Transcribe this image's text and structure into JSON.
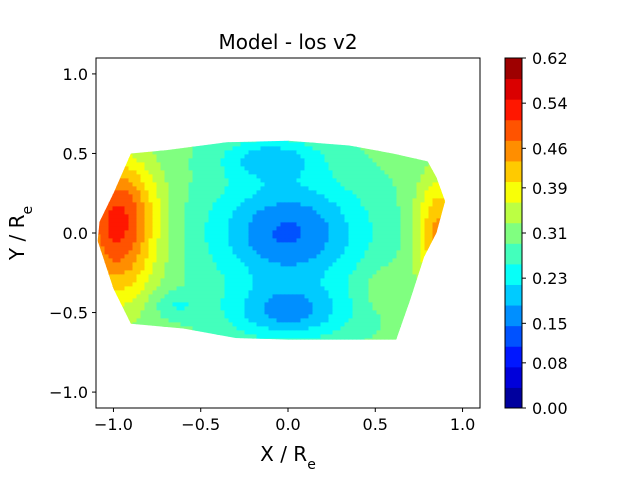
{
  "chart_data": {
    "type": "heatmap",
    "title": "Model - los v2",
    "xlabel": {
      "main": "X / R",
      "sub": "e"
    },
    "ylabel": {
      "main": "Y / R",
      "sub": "e"
    },
    "xlim": [
      -1.1,
      1.1
    ],
    "ylim": [
      -1.1,
      1.1
    ],
    "xticks": [
      -1.0,
      -0.5,
      0.0,
      0.5,
      1.0
    ],
    "xtick_labels": [
      "−1.0",
      "−0.5",
      "0.0",
      "0.5",
      "1.0"
    ],
    "yticks": [
      -1.0,
      -0.5,
      0.0,
      0.5,
      1.0
    ],
    "ytick_labels": [
      "−1.0",
      "−0.5",
      "0.0",
      "0.5",
      "1.0"
    ],
    "colorbar": {
      "min": 0.0,
      "max": 0.62,
      "levels": 17,
      "colormap": "jet",
      "ticks": [
        0.0,
        0.08,
        0.15,
        0.23,
        0.31,
        0.39,
        0.46,
        0.54,
        0.62
      ],
      "tick_labels": [
        "0.00",
        "0.08",
        "0.15",
        "0.23",
        "0.31",
        "0.39",
        "0.46",
        "0.54",
        "0.62"
      ]
    },
    "boundary": [
      [
        -1.08,
        0.07
      ],
      [
        -1.0,
        0.25
      ],
      [
        -0.9,
        0.5
      ],
      [
        -0.7,
        0.52
      ],
      [
        -0.35,
        0.57
      ],
      [
        0.0,
        0.58
      ],
      [
        0.35,
        0.55
      ],
      [
        0.6,
        0.5
      ],
      [
        0.8,
        0.45
      ],
      [
        0.85,
        0.35
      ],
      [
        0.9,
        0.2
      ],
      [
        0.85,
        0.0
      ],
      [
        0.78,
        -0.15
      ],
      [
        0.7,
        -0.42
      ],
      [
        0.62,
        -0.67
      ],
      [
        0.3,
        -0.67
      ],
      [
        0.0,
        -0.67
      ],
      [
        -0.3,
        -0.66
      ],
      [
        -0.6,
        -0.6
      ],
      [
        -0.9,
        -0.57
      ],
      [
        -1.0,
        -0.35
      ],
      [
        -1.06,
        -0.15
      ],
      [
        -1.09,
        -0.05
      ]
    ],
    "field": {
      "background": 0.3,
      "components": [
        {
          "name": "left-lobe",
          "x": -0.98,
          "y": -0.02,
          "sx": 0.16,
          "sy": 0.3,
          "amp": 0.19
        },
        {
          "name": "left-upper",
          "x": -0.95,
          "y": 0.22,
          "sx": 0.15,
          "sy": 0.2,
          "amp": 0.06
        },
        {
          "name": "right-lobe",
          "x": 0.86,
          "y": 0.0,
          "sx": 0.09,
          "sy": 0.25,
          "amp": 0.15
        },
        {
          "name": "center-dip",
          "x": 0.0,
          "y": 0.0,
          "sx": 0.3,
          "sy": 0.24,
          "amp": -0.16
        },
        {
          "name": "top-dip",
          "x": -0.1,
          "y": 0.47,
          "sx": 0.2,
          "sy": 0.09,
          "amp": -0.09
        },
        {
          "name": "bottom-dip",
          "x": 0.0,
          "y": -0.5,
          "sx": 0.24,
          "sy": 0.12,
          "amp": -0.12
        },
        {
          "name": "right-lower-bump",
          "x": 0.55,
          "y": -0.35,
          "sx": 0.1,
          "sy": 0.1,
          "amp": 0.03
        },
        {
          "name": "left-lower-dip",
          "x": -0.65,
          "y": -0.45,
          "sx": 0.1,
          "sy": 0.06,
          "amp": -0.05
        }
      ]
    }
  }
}
